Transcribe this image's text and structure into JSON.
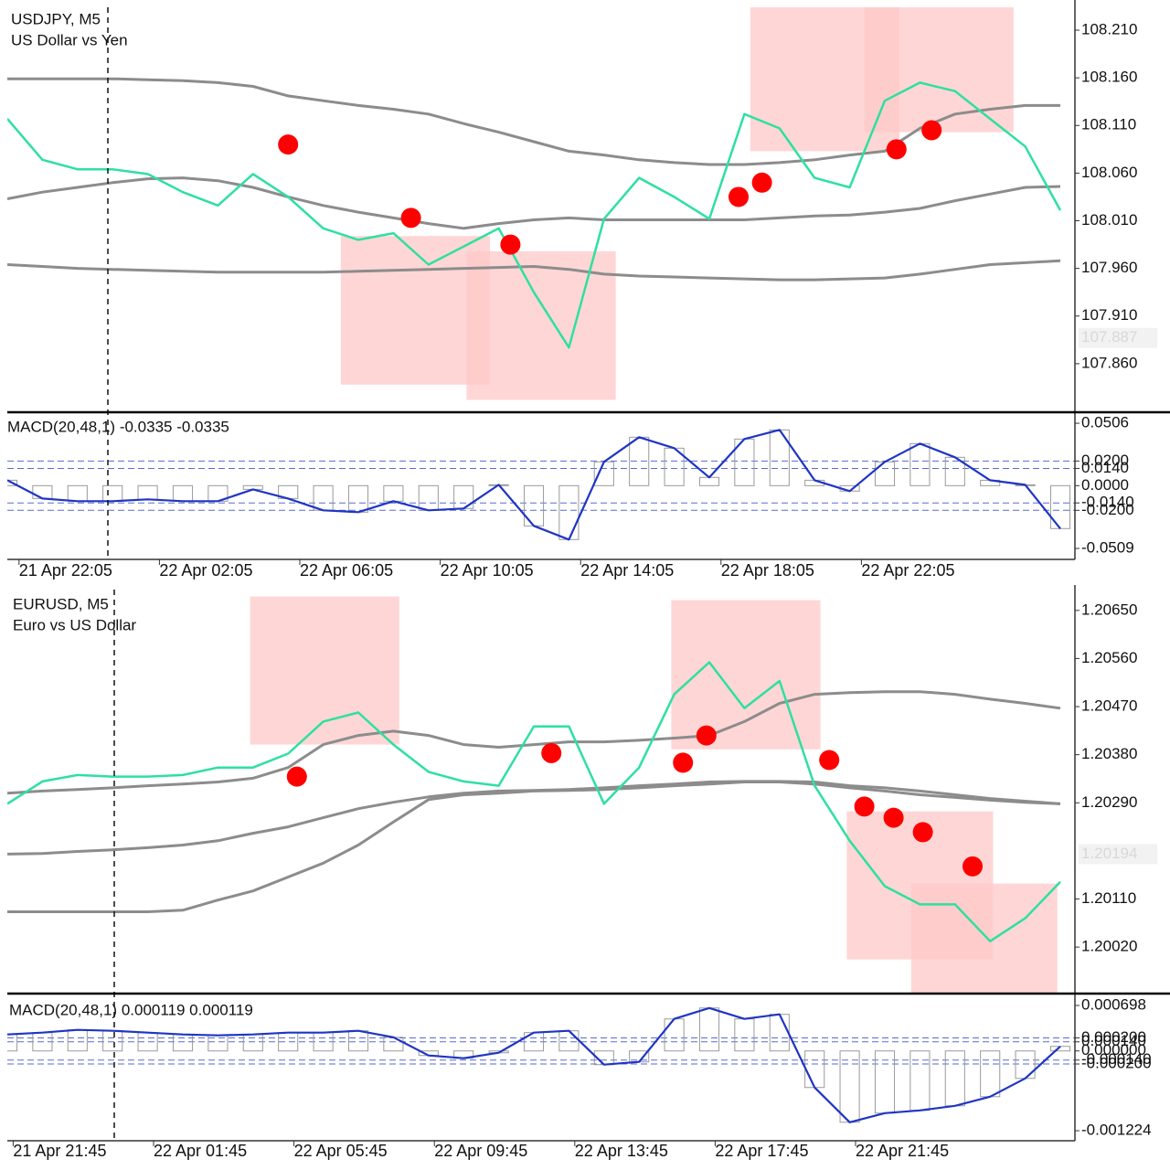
{
  "chart_data": [
    {
      "type": "price",
      "title": "USDJPY, M5",
      "subtitle": "US Dollar vs Yen",
      "x": [
        0,
        12,
        24,
        36,
        48,
        60,
        72,
        84,
        96,
        108,
        120,
        132,
        144,
        156,
        168,
        180,
        192,
        204,
        216,
        228,
        240,
        252,
        264,
        276,
        288,
        300,
        312,
        324,
        336,
        348,
        360
      ],
      "xlim": [
        0,
        365
      ],
      "ylim": [
        107.81,
        108.234
      ],
      "yticks": [
        {
          "value": 108.21,
          "label": "108.210"
        },
        {
          "value": 108.16,
          "label": "108.160"
        },
        {
          "value": 108.11,
          "label": "108.110"
        },
        {
          "value": 108.06,
          "label": "108.060"
        },
        {
          "value": 108.01,
          "label": "108.010"
        },
        {
          "value": 107.96,
          "label": "107.960"
        },
        {
          "value": 107.91,
          "label": "107.910"
        },
        {
          "value": 107.86,
          "label": "107.860"
        }
      ],
      "last_price": 107.887,
      "series": [
        {
          "color": "#8c8c8c",
          "values": [
            108.159,
            108.159,
            108.159,
            108.159,
            108.158,
            108.157,
            108.155,
            108.151,
            108.141,
            108.136,
            108.131,
            108.127,
            108.122,
            108.112,
            108.103,
            108.093,
            108.083,
            108.079,
            108.074,
            108.071,
            108.069,
            108.069,
            108.071,
            108.074,
            108.079,
            108.083,
            108.107,
            108.122,
            108.127,
            108.131,
            108.131
          ]
        },
        {
          "color": "#8c8c8c",
          "values": [
            108.033,
            108.04,
            108.045,
            108.05,
            108.054,
            108.055,
            108.052,
            108.045,
            108.035,
            108.026,
            108.019,
            108.013,
            108.007,
            108.002,
            108.007,
            108.011,
            108.013,
            108.011,
            108.011,
            108.011,
            108.011,
            108.011,
            108.013,
            108.015,
            108.016,
            108.019,
            108.023,
            108.031,
            108.038,
            108.045,
            108.046
          ]
        },
        {
          "color": "#8c8c8c",
          "values": [
            107.964,
            107.962,
            107.96,
            107.959,
            107.958,
            107.957,
            107.956,
            107.956,
            107.956,
            107.956,
            107.957,
            107.958,
            107.959,
            107.96,
            107.961,
            107.962,
            107.959,
            107.954,
            107.952,
            107.951,
            107.95,
            107.949,
            107.948,
            107.948,
            107.949,
            107.95,
            107.954,
            107.959,
            107.964,
            107.966,
            107.968
          ]
        },
        {
          "color": "#2ee0a0",
          "values": [
            108.117,
            108.074,
            108.064,
            108.064,
            108.059,
            108.04,
            108.026,
            108.059,
            108.035,
            108.002,
            107.99,
            107.997,
            107.964,
            107.983,
            108.002,
            107.935,
            107.877,
            108.012,
            108.055,
            108.035,
            108.012,
            108.122,
            108.107,
            108.055,
            108.045,
            108.136,
            108.155,
            108.146,
            108.117,
            108.088,
            108.021
          ]
        }
      ],
      "markers": {
        "color": "#ff0000",
        "x": [
          96,
          138,
          172,
          250,
          258,
          304,
          316
        ],
        "values": [
          108.09,
          108.013,
          107.985,
          108.035,
          108.05,
          108.085,
          108.105
        ]
      },
      "zones": [
        {
          "color": "#ffc8c8",
          "x": [
            114,
            165
          ],
          "y": [
            107.838,
            107.994
          ]
        },
        {
          "color": "#ffc8c8",
          "x": [
            157,
            208
          ],
          "y": [
            107.822,
            107.978
          ]
        },
        {
          "color": "#ffc8c8",
          "x": [
            254,
            305
          ],
          "y": [
            108.083,
            108.234
          ]
        },
        {
          "color": "#ffc8c8",
          "x": [
            293,
            344
          ],
          "y": [
            108.103,
            108.234
          ]
        }
      ]
    },
    {
      "type": "macd",
      "title": "MACD(20,48,1) -0.0335 -0.0335",
      "x": [
        0,
        12,
        24,
        36,
        48,
        60,
        72,
        84,
        96,
        108,
        120,
        132,
        144,
        156,
        168,
        180,
        192,
        204,
        216,
        228,
        240,
        252,
        264,
        276,
        288,
        300,
        312,
        324,
        336,
        348,
        360
      ],
      "xlim": [
        0,
        365
      ],
      "ylim": [
        -0.0598,
        0.0588
      ],
      "yticks": [
        0.0506,
        {
          "value": 0.02,
          "label": "0.0200"
        },
        {
          "value": 0.014,
          "label": "0.0140"
        },
        {
          "value": 0,
          "label": "0.0000"
        },
        {
          "value": -0.014,
          "label": "-0.0140"
        },
        {
          "value": -0.02,
          "label": "-0.0200"
        },
        -0.0509
      ],
      "levels": [
        0.02,
        0.014,
        -0.014,
        -0.02
      ],
      "xticks": [
        {
          "value": 4,
          "label": "21 Apr 22:05"
        },
        {
          "value": 52,
          "label": "22 Apr 02:05"
        },
        {
          "value": 100,
          "label": "22 Apr 06:05"
        },
        {
          "value": 148,
          "label": "22 Apr 10:05"
        },
        {
          "value": 196,
          "label": "22 Apr 14:05"
        },
        {
          "value": 244,
          "label": "22 Apr 18:05"
        },
        {
          "value": 292,
          "label": "22 Apr 22:05"
        }
      ],
      "color": "#1f35c4",
      "histogram_color": "#9a9a9a",
      "values": [
        0.0044,
        -0.0104,
        -0.0126,
        -0.0126,
        -0.0111,
        -0.0126,
        -0.0126,
        -0.003,
        -0.0104,
        -0.02,
        -0.0215,
        -0.0126,
        -0.02,
        -0.0185,
        0.0007,
        -0.0326,
        -0.0437,
        0.0193,
        0.0393,
        0.0304,
        0.0067,
        0.0378,
        0.0452,
        0.0044,
        -0.0044,
        0.0193,
        0.0341,
        0.023,
        0.0044,
        0.0007,
        -0.0348
      ]
    },
    {
      "type": "price",
      "title": "EURUSD, M5",
      "subtitle": "Euro vs US Dollar",
      "x": [
        0,
        12,
        24,
        36,
        48,
        60,
        72,
        84,
        96,
        108,
        120,
        132,
        144,
        156,
        168,
        180,
        192,
        204,
        216,
        228,
        240,
        252,
        264,
        276,
        288,
        300,
        312,
        324,
        336,
        348,
        360
      ],
      "xlim": [
        0,
        365
      ],
      "ylim": [
        1.19933,
        1.20689
      ],
      "yticks": [
        {
          "value": 1.2065,
          "label": "1.20650"
        },
        {
          "value": 1.2056,
          "label": "1.20560"
        },
        {
          "value": 1.2047,
          "label": "1.20470"
        },
        {
          "value": 1.2038,
          "label": "1.20380"
        },
        {
          "value": 1.2029,
          "label": "1.20290"
        },
        {
          "value": 1.2011,
          "label": "1.20110"
        },
        {
          "value": 1.2002,
          "label": "1.20020"
        }
      ],
      "last_price": 1.20194,
      "series": [
        {
          "color": "#8c8c8c",
          "values": [
            1.20308,
            1.20312,
            1.20315,
            1.20318,
            1.20322,
            1.20325,
            1.20329,
            1.20336,
            1.20356,
            1.20399,
            1.20416,
            1.20424,
            1.20416,
            1.20399,
            1.20394,
            1.20399,
            1.20404,
            1.20404,
            1.20407,
            1.20411,
            1.20416,
            1.20442,
            1.20476,
            1.20493,
            1.20496,
            1.20498,
            1.20498,
            1.20493,
            1.20484,
            1.20476,
            1.20467
          ]
        },
        {
          "color": "#8c8c8c",
          "values": [
            1.20194,
            1.20195,
            1.20199,
            1.20202,
            1.20206,
            1.20211,
            1.20219,
            1.20233,
            1.20245,
            1.20262,
            1.20279,
            1.20291,
            1.20301,
            1.20308,
            1.20312,
            1.20313,
            1.20315,
            1.20318,
            1.20322,
            1.20325,
            1.20329,
            1.2033,
            1.2033,
            1.20329,
            1.20322,
            1.20318,
            1.20312,
            1.20305,
            1.20298,
            1.20293,
            1.20288
          ]
        },
        {
          "color": "#8c8c8c",
          "values": [
            1.20086,
            1.20086,
            1.20086,
            1.20086,
            1.20086,
            1.20089,
            1.20108,
            1.20125,
            1.20151,
            1.20177,
            1.20211,
            1.20254,
            1.20296,
            1.20305,
            1.20308,
            1.20312,
            1.20313,
            1.20315,
            1.20318,
            1.20322,
            1.20325,
            1.20329,
            1.20329,
            1.20325,
            1.20318,
            1.20312,
            1.20305,
            1.203,
            1.20295,
            1.20291,
            1.20288
          ]
        },
        {
          "color": "#2ee0a0",
          "values": [
            1.20288,
            1.2033,
            1.20342,
            1.20339,
            1.20339,
            1.20342,
            1.20356,
            1.20356,
            1.20382,
            1.20442,
            1.20459,
            1.20399,
            1.20348,
            1.2033,
            1.20322,
            1.20433,
            1.20433,
            1.20288,
            1.20356,
            1.20493,
            1.20553,
            1.20467,
            1.20518,
            1.20322,
            1.20219,
            1.20134,
            1.201,
            1.201,
            1.20031,
            1.20074,
            1.20142
          ]
        }
      ],
      "markers": {
        "color": "#ff0000",
        "x": [
          99,
          186,
          231,
          239,
          281,
          293,
          303,
          313,
          330
        ],
        "values": [
          1.20339,
          1.20383,
          1.20365,
          1.20416,
          1.2037,
          1.20283,
          1.20262,
          1.20235,
          1.20171
        ]
      },
      "zones": [
        {
          "color": "#ffc8c8",
          "x": [
            83,
            134
          ],
          "y": [
            1.20399,
            1.20676
          ]
        },
        {
          "color": "#ffc8c8",
          "x": [
            227,
            278
          ],
          "y": [
            1.2039,
            1.20669
          ]
        },
        {
          "color": "#ffc8c8",
          "x": [
            287,
            337
          ],
          "y": [
            1.19997,
            1.20274
          ]
        },
        {
          "color": "#ffc8c8",
          "x": [
            309,
            359
          ],
          "y": [
            1.1986,
            1.20139
          ]
        }
      ]
    },
    {
      "type": "macd",
      "title": "MACD(20,48,1) 0.000119 0.000119",
      "x": [
        0,
        12,
        24,
        36,
        48,
        60,
        72,
        84,
        96,
        108,
        120,
        132,
        144,
        156,
        168,
        180,
        192,
        204,
        216,
        228,
        240,
        252,
        264,
        276,
        288,
        300,
        312,
        324,
        336,
        348,
        360
      ],
      "xlim": [
        0,
        365
      ],
      "ylim": [
        -0.001378,
        0.000866
      ],
      "yticks": [
        0.000698,
        {
          "value": 0.0002,
          "label": "0.000200"
        },
        {
          "value": 0.00014,
          "label": "0.000140"
        },
        {
          "value": 0,
          "label": "0.000000"
        },
        {
          "value": -0.00014,
          "label": "-0.000140"
        },
        {
          "value": -0.0002,
          "label": "-0.000200"
        },
        -0.001224
      ],
      "levels": [
        0.0002,
        0.00014,
        -0.00014,
        -0.0002
      ],
      "xticks": [
        {
          "value": 2,
          "label": "21 Apr 21:45"
        },
        {
          "value": 50,
          "label": "22 Apr 01:45"
        },
        {
          "value": 98,
          "label": "22 Apr 05:45"
        },
        {
          "value": 146,
          "label": "22 Apr 09:45"
        },
        {
          "value": 194,
          "label": "22 Apr 13:45"
        },
        {
          "value": 242,
          "label": "22 Apr 17:45"
        },
        {
          "value": 290,
          "label": "22 Apr 21:45"
        }
      ],
      "color": "#1f35c4",
      "histogram_color": "#9a9a9a",
      "values": [
        0.000253,
        0.000281,
        0.000323,
        0.000309,
        0.000281,
        0.000253,
        0.000239,
        0.000253,
        0.000281,
        0.000281,
        0.000309,
        0.00021,
        -7e-05,
        -0.000112,
        -2.8e-05,
        0.000281,
        0.000309,
        -0.00021,
        -0.000168,
        0.000491,
        0.000659,
        0.000491,
        0.000561,
        -0.000561,
        -0.001094,
        -0.000954,
        -0.000912,
        -0.000842,
        -0.000702,
        -0.000421,
        7e-05
      ]
    }
  ]
}
